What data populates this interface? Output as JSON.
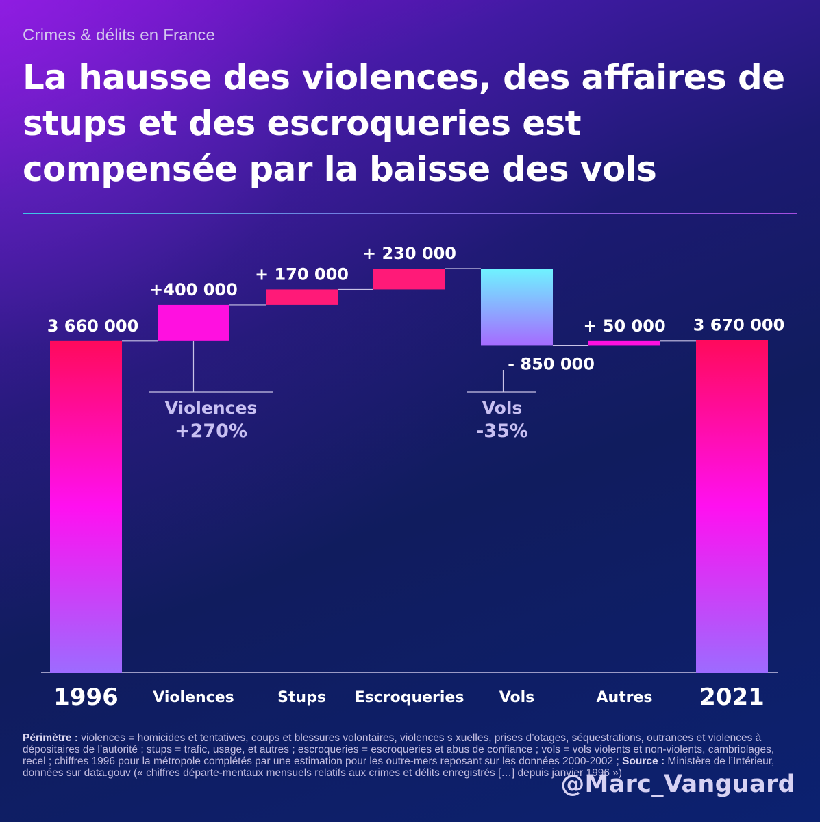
{
  "subtitle": "Crimes & délits en France",
  "title": "La hausse des violences, des affaires de stups et des escroqueries est compensée par la baisse des vols",
  "chart_data": {
    "type": "waterfall",
    "unit": "crimes et délits enregistrés",
    "categories": [
      "1996",
      "Violences",
      "Stups",
      "Escroqueries",
      "Vols",
      "Autres",
      "2021"
    ],
    "steps": [
      {
        "category": "1996",
        "kind": "total",
        "value": 3660000,
        "label": "3 660 000"
      },
      {
        "category": "Violences",
        "kind": "delta",
        "value": 400000,
        "label": "+400 000"
      },
      {
        "category": "Stups",
        "kind": "delta",
        "value": 170000,
        "label": "+ 170 000"
      },
      {
        "category": "Escroqueries",
        "kind": "delta",
        "value": 230000,
        "label": "+ 230 000"
      },
      {
        "category": "Vols",
        "kind": "delta",
        "value": -850000,
        "label": "- 850 000"
      },
      {
        "category": "Autres",
        "kind": "delta",
        "value": 50000,
        "label": "+ 50 000"
      },
      {
        "category": "2021",
        "kind": "total",
        "value": 3670000,
        "label": "3 670 000"
      }
    ],
    "callouts": [
      {
        "category": "Violences",
        "name": "Violences",
        "change": "+270%"
      },
      {
        "category": "Vols",
        "name": "Vols",
        "change": "-35%"
      }
    ],
    "ylim": [
      0,
      4460000
    ],
    "colors": {
      "total_top": "#ff0a5c",
      "total_mid": "#ff10f0",
      "total_bottom": "#9d6bff",
      "increase": "#ff1a78",
      "increase_alt": "#ff10e0",
      "decrease_top": "#6ff3ff",
      "decrease_bottom": "#a56bff"
    }
  },
  "footnote": {
    "perimetre_label": "Périmètre :",
    "perimetre_text": " violences = homicides et tentatives, coups et blessures volontaires, violences s xuelles, prises d’otages, séquestrations, outrances et violences à dépositaires de l’autorité ; stups = trafic, usage, et autres ; escroqueries = escroqueries et abus de confiance ; vols = vols violents et non-violents, cambriolages, recel ; chiffres 1996 pour la métropole complétés par une estimation pour les outre-mers reposant sur les données 2000-2002 ;",
    "source_label": "Source :",
    "source_text": " Ministère de l’Intérieur, données sur data.gouv (« chiffres départe-mentaux mensuels relatifs aux crimes et délits enregistrés […] depuis janvier 1996 »)"
  },
  "handle": "@Marc_Vanguard"
}
